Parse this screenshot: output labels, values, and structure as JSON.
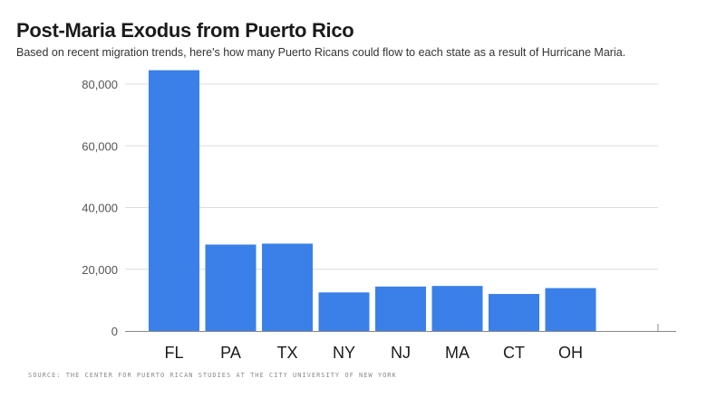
{
  "title": "Post-Maria Exodus from Puerto Rico",
  "subtitle": "Based on recent migration trends, here's how many Puerto Ricans could flow to each state as a result of Hurricane Maria.",
  "source": "SOURCE: THE CENTER FOR PUERTO RICAN STUDIES AT THE CITY UNIVERSITY OF NEW YORK",
  "colors": {
    "bar": "#3a80e8",
    "grid": "#dcdcdc",
    "axis": "#888888",
    "tick_text": "#555555",
    "category_text": "#1b1b1b"
  },
  "chart_data": {
    "type": "bar",
    "title": "Post-Maria Exodus from Puerto Rico",
    "subtitle": "Based on recent migration trends, here's how many Puerto Ricans could flow to each state as a result of Hurricane Maria.",
    "xlabel": "",
    "ylabel": "",
    "categories": [
      "FL",
      "PA",
      "TX",
      "NY",
      "NJ",
      "MA",
      "CT",
      "OH"
    ],
    "values": [
      84500,
      28000,
      28300,
      12500,
      14400,
      14600,
      12000,
      13900
    ],
    "ylim": [
      0,
      80000
    ],
    "yticks": [
      0,
      20000,
      40000,
      60000,
      80000
    ],
    "ytick_labels": [
      "0",
      "20,000",
      "40,000",
      "60,000",
      "80,000"
    ],
    "grid": true,
    "legend": "none"
  }
}
